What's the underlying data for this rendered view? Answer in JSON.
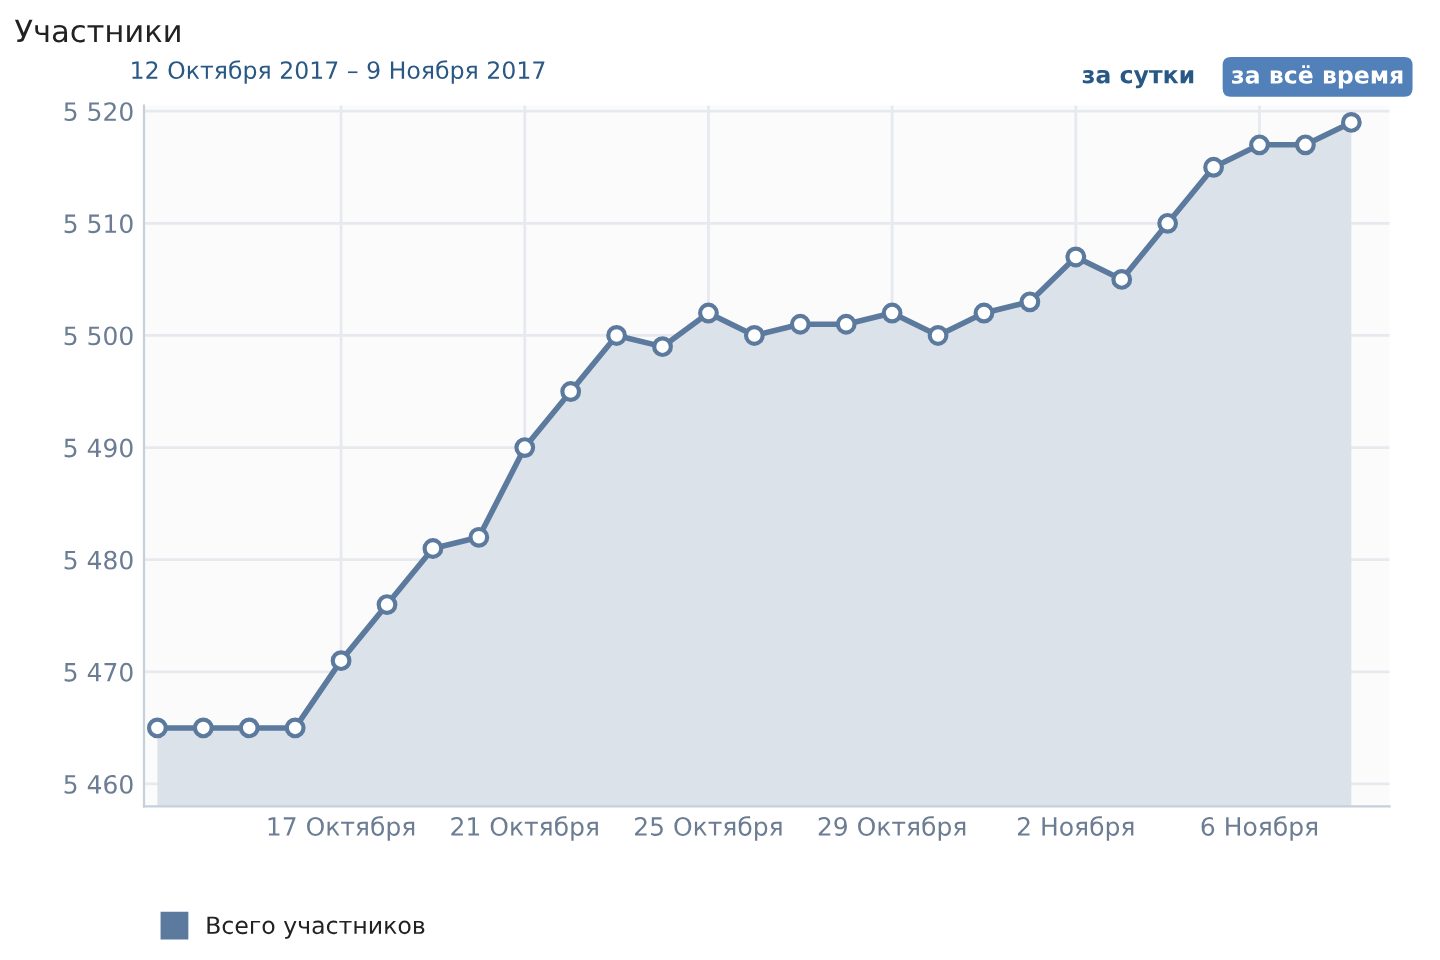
{
  "chart_data": {
    "type": "area",
    "title": "Участники",
    "subtitle": "12 Октября 2017 – 9 Ноября 2017",
    "annotations": [
      "за сутки",
      "за всё время"
    ],
    "x": [
      "2017-10-13",
      "2017-10-14",
      "2017-10-15",
      "2017-10-16",
      "2017-10-17",
      "2017-10-18",
      "2017-10-19",
      "2017-10-20",
      "2017-10-21",
      "2017-10-22",
      "2017-10-23",
      "2017-10-24",
      "2017-10-25",
      "2017-10-26",
      "2017-10-27",
      "2017-10-28",
      "2017-10-29",
      "2017-10-30",
      "2017-10-31",
      "2017-11-01",
      "2017-11-02",
      "2017-11-03",
      "2017-11-04",
      "2017-11-05",
      "2017-11-06",
      "2017-11-07",
      "2017-11-08"
    ],
    "series": [
      {
        "name": "Всего участников",
        "color": "#5b7a9d",
        "values": [
          5465,
          5465,
          5465,
          5465,
          5471,
          5476,
          5481,
          5482,
          5490,
          5495,
          5500,
          5499,
          5502,
          5500,
          5501,
          5501,
          5502,
          5500,
          5502,
          5503,
          5507,
          5505,
          5510,
          5515,
          5517,
          5517,
          5519
        ]
      }
    ],
    "xlim": [
      "2017-10-12T17:00",
      "2017-11-08T20:00"
    ],
    "xticks": [
      {
        "value": "2017-10-17",
        "label": "17 Октября"
      },
      {
        "value": "2017-10-21",
        "label": "21 Октября"
      },
      {
        "value": "2017-10-25",
        "label": "25 Октября"
      },
      {
        "value": "2017-10-29",
        "label": "29 Октября"
      },
      {
        "value": "2017-11-02",
        "label": "2 Ноября"
      },
      {
        "value": "2017-11-06",
        "label": "6 Ноября"
      }
    ],
    "ylim": [
      5458,
      5520.5
    ],
    "yticks": [
      {
        "value": 5460,
        "label": "5 460"
      },
      {
        "value": 5470,
        "label": "5 470"
      },
      {
        "value": 5480,
        "label": "5 480"
      },
      {
        "value": 5490,
        "label": "5 490"
      },
      {
        "value": 5500,
        "label": "5 500"
      },
      {
        "value": 5510,
        "label": "5 510"
      },
      {
        "value": 5520,
        "label": "5 520"
      }
    ],
    "grid": true,
    "legend": "bottom left",
    "marker": "circle",
    "line_style": "solid"
  }
}
